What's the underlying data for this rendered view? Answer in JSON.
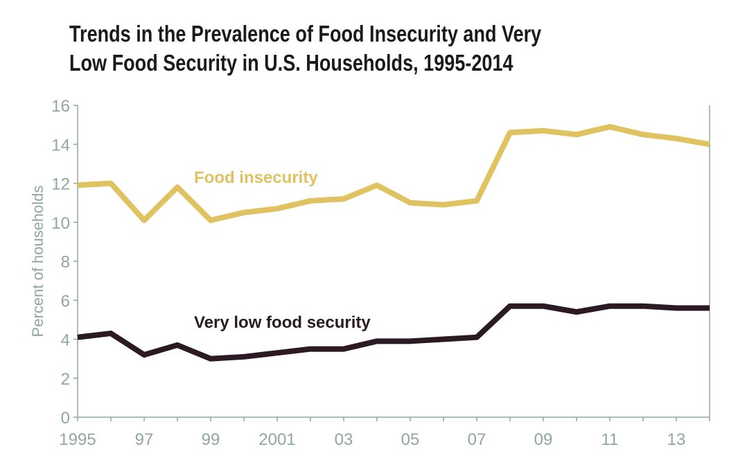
{
  "chart_data": {
    "type": "line",
    "title": "Trends in the Prevalence of Food Insecurity and Very Low Food Security in U.S. Households, 1995-2014",
    "title_lines": [
      "Trends in the Prevalence of Food Insecurity and Very",
      "Low Food Security in U.S. Households, 1995-2014"
    ],
    "xlabel": "",
    "ylabel": "Percent of households",
    "x": [
      1995,
      1996,
      1997,
      1998,
      1999,
      2000,
      2001,
      2002,
      2003,
      2004,
      2005,
      2006,
      2007,
      2008,
      2009,
      2010,
      2011,
      2012,
      2013,
      2014
    ],
    "xlim": [
      1995,
      2014
    ],
    "ylim": [
      0,
      16
    ],
    "x_ticks": [
      1995,
      1997,
      1999,
      2001,
      2003,
      2005,
      2007,
      2009,
      2011,
      2013
    ],
    "x_tick_labels": [
      "1995",
      "97",
      "99",
      "2001",
      "03",
      "05",
      "07",
      "09",
      "11",
      "13"
    ],
    "y_ticks": [
      0,
      2,
      4,
      6,
      8,
      10,
      12,
      14,
      16
    ],
    "y_tick_labels": [
      "0",
      "2",
      "4",
      "6",
      "8",
      "10",
      "12",
      "14",
      "16"
    ],
    "grid": false,
    "series": [
      {
        "name": "Food insecurity",
        "color": "#e0c261",
        "values": [
          11.9,
          12.0,
          10.1,
          11.8,
          10.1,
          10.5,
          10.7,
          11.1,
          11.2,
          11.9,
          11.0,
          10.9,
          11.1,
          14.6,
          14.7,
          14.5,
          14.9,
          14.5,
          14.3,
          14.0
        ]
      },
      {
        "name": "Very low food security",
        "color": "#2b1a22",
        "values": [
          4.1,
          4.3,
          3.2,
          3.7,
          3.0,
          3.1,
          3.3,
          3.5,
          3.5,
          3.9,
          3.9,
          4.0,
          4.1,
          5.7,
          5.7,
          5.4,
          5.7,
          5.7,
          5.6,
          5.6
        ]
      }
    ],
    "axis_color": "#8fa89c"
  }
}
